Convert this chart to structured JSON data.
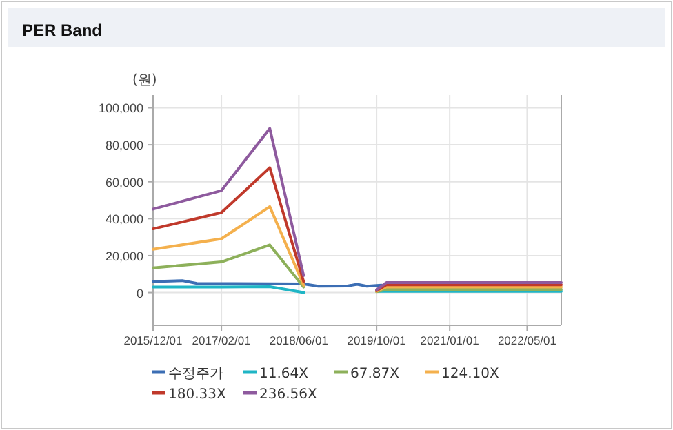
{
  "chart_data": {
    "type": "line",
    "title": "PER Band",
    "ylabel": "(원)",
    "xlim": [
      "2015-12-01",
      "2022-12-01"
    ],
    "xticks": [
      {
        "value": "2015-12-01",
        "label": "2015/12/01"
      },
      {
        "value": "2017-02-01",
        "label": "2017/02/01"
      },
      {
        "value": "2018-06-01",
        "label": "2018/06/01"
      },
      {
        "value": "2019-10-01",
        "label": "2019/10/01"
      },
      {
        "value": "2021-01-01",
        "label": "2021/01/01"
      },
      {
        "value": "2022-05-01",
        "label": "2022/05/01"
      }
    ],
    "ylim": [
      -17700,
      106900
    ],
    "yticks": [
      {
        "value": 0,
        "label": "0"
      },
      {
        "value": 20000,
        "label": "20,000"
      },
      {
        "value": 40000,
        "label": "40,000"
      },
      {
        "value": 60000,
        "label": "60,000"
      },
      {
        "value": 80000,
        "label": "80,000"
      },
      {
        "value": 100000,
        "label": "100,000"
      }
    ],
    "grid": true,
    "legend": "bottom",
    "series": [
      {
        "name": "수정주가",
        "color": "#3c6eb4",
        "x": [
          "2015-12-01",
          "2016-06-01",
          "2016-09-01",
          "2017-12-01",
          "2018-07-01",
          "2018-10-01",
          "2019-04-01",
          "2019-06-01",
          "2019-08-01",
          "2019-11-01"
        ],
        "values": [
          6000,
          6500,
          5000,
          4800,
          4700,
          3500,
          3600,
          4500,
          3500,
          4000
        ]
      },
      {
        "name": "11.64X",
        "color": "#1fb5c5",
        "x": [
          "2015-12-01",
          "2017-02-01",
          "2017-12-01",
          "2018-07-01"
        ],
        "values": [
          3000,
          3000,
          3200,
          0
        ]
      },
      {
        "name": "67.87X",
        "color": "#8db05a",
        "x": [
          "2015-12-01",
          "2017-02-01",
          "2017-12-01",
          "2018-07-01"
        ],
        "values": [
          13400,
          16600,
          25800,
          3000
        ]
      },
      {
        "name": "124.10X",
        "color": "#f4b04d",
        "x": [
          "2015-12-01",
          "2017-02-01",
          "2017-12-01",
          "2018-07-01"
        ],
        "values": [
          23400,
          29100,
          46500,
          4000
        ]
      },
      {
        "name": "180.33X",
        "color": "#c0392b",
        "x": [
          "2015-12-01",
          "2017-02-01",
          "2017-12-01",
          "2018-07-01"
        ],
        "values": [
          34500,
          43300,
          67600,
          6000
        ]
      },
      {
        "name": "236.56X",
        "color": "#8e5a9e",
        "x": [
          "2015-12-01",
          "2017-02-01",
          "2017-12-01",
          "2018-07-01"
        ],
        "values": [
          45200,
          55200,
          88800,
          9200
        ]
      },
      {
        "color": "#1fb5c5",
        "x": [
          "2019-10-01",
          "2019-12-01",
          "2022-12-01"
        ],
        "values": [
          700,
          700,
          700
        ]
      },
      {
        "color": "#8db05a",
        "x": [
          "2019-10-01",
          "2019-12-01",
          "2022-12-01"
        ],
        "values": [
          500,
          1700,
          1700
        ]
      },
      {
        "color": "#f4b04d",
        "x": [
          "2019-10-01",
          "2019-12-01",
          "2022-12-01"
        ],
        "values": [
          700,
          3000,
          3000
        ]
      },
      {
        "color": "#c0392b",
        "x": [
          "2019-10-01",
          "2019-12-01",
          "2022-12-01"
        ],
        "values": [
          1000,
          4200,
          4200
        ]
      },
      {
        "color": "#8e5a9e",
        "x": [
          "2019-10-01",
          "2019-12-01",
          "2022-12-01"
        ],
        "values": [
          1500,
          5400,
          5400
        ]
      }
    ]
  }
}
